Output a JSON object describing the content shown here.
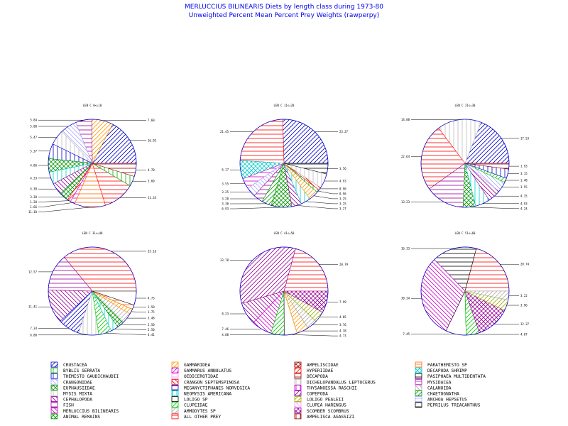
{
  "title": "MERLUCCIUS BILINEARIS Diets by length class during 1973-80",
  "subtitle": "Unweighted Percent Mean Percent Prey  Weights (rawperpy)",
  "chart_data": [
    {
      "type": "pie",
      "title": "LEN C 0<=10",
      "categories": [
        "CRUSTACEA",
        "GAMMARIDEA",
        "FISH",
        "CRANGONIDAE",
        "MYSIS MIXTA",
        "THEMISTO GAUDICHAUDII",
        "EUPHAUSIIDAE",
        "NEOMYSIS AMERICANA",
        "CEPHALOPODA",
        "ANIMAL REMAINS",
        "HYPERIIDAE",
        "MYSIDACEA",
        "PARATHEMISTO SP",
        "ALL OTHER PREY",
        "BYBLIS SERRATA",
        "DECAPODA"
      ],
      "values": [
        16.93,
        7.6,
        5.84,
        5.8,
        5.47,
        5.37,
        4.86,
        4.33,
        4.3,
        3.3,
        1.2,
        1.66,
        11.1,
        11.33,
        3.6,
        4.7
      ]
    },
    {
      "type": "pie",
      "title": "LEN C 11<=20",
      "categories": [
        "CRUSTACEA",
        "ALL OTHER PREY",
        "DECAPODA SHRIMP",
        "MYSIDACEA",
        "CRANGONIDAE",
        "FISH",
        "CHAETOGNATHA",
        "EUPHAUSIIDAE",
        "CEPHALOPODA",
        "NEOMYSIS AMERICANA",
        "GAMMARIDEA",
        "BYBLIS SERRATA",
        "CRANGON SEPTEMSPINOSA",
        "MYSIS MIXTA",
        "PASIPHAEA MULTIDENTATA"
      ],
      "values": [
        23.27,
        21.45,
        6.17,
        3.55,
        3.25,
        3.2,
        3.3,
        6.93,
        3.27,
        3.25,
        3.25,
        0.96,
        0.96,
        4.93,
        3.56
      ]
    },
    {
      "type": "pie",
      "title": "LEN C 21<=30",
      "categories": [
        "CRUSTACEA",
        "MYSIS MIXTA",
        "ALL OTHER PREY",
        "FISH",
        "EUPHAUSIIDAE",
        "NEOMYSIS AMERICANA",
        "CEPHALOPODA",
        "CRANGONIDAE",
        "CLUPEIDAE",
        "THEMISTO GAUDICHAUDII",
        "DECAPODA"
      ],
      "values": [
        17.53,
        14.88,
        22.64,
        13.23,
        4.24,
        4.93,
        4.35,
        3.55,
        1.48,
        3.15,
        1.93
      ]
    },
    {
      "type": "pie",
      "title": "LEN C 31<=40",
      "categories": [
        "ALL OTHER PREY",
        "FISH",
        "CEPHALOPODA",
        "CRUSTACEA",
        "MYSIS MIXTA",
        "CLUPEIDAE",
        "NEOMYSIS AMERICANA",
        "ANIMAL REMAINS",
        "AMMODYTES SP",
        "GAMMARIDEA",
        "PARATHEMISTO SP",
        "LOLIGO SP"
      ],
      "values": [
        33.16,
        12.57,
        11.41,
        7.34,
        6.8,
        4.41,
        2.5,
        2.5,
        3.48,
        1.75,
        1.5,
        4.73
      ]
    },
    {
      "type": "pie",
      "title": "LEN C 41<=50",
      "categories": [
        "ALL OTHER PREY",
        "COPEPODA",
        "CEPHALOPODA",
        "MERLUCCIUS BILINEARIS",
        "CLUPEIDAE",
        "LOLIGO SP",
        "GAMMARIDEA",
        "AMMODYTES SP",
        "LOLIGO PEALEII",
        "SCOMBER SCOMBRUS"
      ],
      "values": [
        20.79,
        33.7,
        8.23,
        7.46,
        4.88,
        4.73,
        4.38,
        3.76,
        4.05,
        7.99
      ]
    },
    {
      "type": "pie",
      "title": "LEN C 51<=60",
      "categories": [
        "ALL OTHER PREY",
        "PEPRILUS TRIACANTHUS",
        "MERLUCCIUS BILINEARIS",
        "LOLIGO SP",
        "CLUPEIDAE",
        "SCOMBER SCOMBRUS",
        "LOLIGO PEALEII",
        "AMMODYTES SP"
      ],
      "values": [
        20.74,
        16.33,
        30.34,
        7.45,
        4.87,
        12.37,
        3.96,
        3.22
      ]
    }
  ],
  "legend": [
    {
      "name": "CRUSTACEA",
      "color": "#0000cc",
      "pattern": "diag-r"
    },
    {
      "name": "BYBLIS SERRATA",
      "color": "#00aa00",
      "pattern": "vert"
    },
    {
      "name": "THEMISTO GAUDICHAUDII",
      "color": "#0000cc",
      "pattern": "vert"
    },
    {
      "name": "CRANGONIDAE",
      "color": "#aaaaff",
      "pattern": "diag-l"
    },
    {
      "name": "EUPHAUSIIDAE",
      "color": "#009900",
      "pattern": "cross-diag"
    },
    {
      "name": "MYSIS MIXTA",
      "color": "#bbbbbb",
      "pattern": "vert"
    },
    {
      "name": "CEPHALOPODA",
      "color": "#990099",
      "pattern": "diag-l"
    },
    {
      "name": "FISH",
      "color": "#990099",
      "pattern": "horiz"
    },
    {
      "name": "MERLUCCIUS BILINEARIS",
      "color": "#cc00cc",
      "pattern": "diag-l"
    },
    {
      "name": "ANIMAL REMAINS",
      "color": "#009900",
      "pattern": "cross-diag"
    },
    {
      "name": "GAMMARIDEA",
      "color": "#ff9900",
      "pattern": "diag-r"
    },
    {
      "name": "GAMMARUS ANNULATUS",
      "color": "#cc00cc",
      "pattern": "diag-r"
    },
    {
      "name": "OEDICEROTIDAE",
      "color": "#ff99ff",
      "pattern": "horiz"
    },
    {
      "name": "CRANGON SEPTEMSPINOSA",
      "color": "#ff0000",
      "pattern": "diag-l"
    },
    {
      "name": "MEGANYCTIPHANES NORVEGICA",
      "color": "#0000cc",
      "pattern": "horiz"
    },
    {
      "name": "NEOMYSIS AMERICANA",
      "color": "#00cccc",
      "pattern": "vert"
    },
    {
      "name": "LOLIGO SP",
      "color": "#000000",
      "pattern": "none"
    },
    {
      "name": "CLUPEIDAE",
      "color": "#00cc00",
      "pattern": "diag-r"
    },
    {
      "name": "AMMODYTES SP",
      "color": "#aaaaaa",
      "pattern": "diag-r"
    },
    {
      "name": "ALL OTHER PREY",
      "color": "#ff0000",
      "pattern": "horiz"
    },
    {
      "name": "AMPELISCIDAE",
      "color": "#990000",
      "pattern": "cross-diag"
    },
    {
      "name": "HYPERIIDAE",
      "color": "#ff0000",
      "pattern": "diag-r"
    },
    {
      "name": "DECAPODA",
      "color": "#990000",
      "pattern": "horiz"
    },
    {
      "name": "DICHELOPANDALUS LEPTOCERUS",
      "color": "#bbbbbb",
      "pattern": "vert"
    },
    {
      "name": "THYSANOESSA RASCHII",
      "color": "#cc00cc",
      "pattern": "vert"
    },
    {
      "name": "COPEPODA",
      "color": "#990099",
      "pattern": "diag-r"
    },
    {
      "name": "LOLIGO PEALEII",
      "color": "#99aa00",
      "pattern": "diag-r"
    },
    {
      "name": "CLUPEA HARENGUS",
      "color": "#ff99ff",
      "pattern": "diag-l"
    },
    {
      "name": "SCOMBER SCOMBRUS",
      "color": "#990099",
      "pattern": "cross-diag"
    },
    {
      "name": "AMPELISCA AGASSIZI",
      "color": "#990000",
      "pattern": "vert"
    },
    {
      "name": "PARATHEMISTO SP",
      "color": "#ff6600",
      "pattern": "horiz"
    },
    {
      "name": "DECAPODA SHRIMP",
      "color": "#00cccc",
      "pattern": "cross-diag"
    },
    {
      "name": "PASIPHAEA MULTIDENTATA",
      "color": "#000000",
      "pattern": "horiz"
    },
    {
      "name": "MYSIDACEA",
      "color": "#cc00cc",
      "pattern": "horiz"
    },
    {
      "name": "CALANOIDA",
      "color": "#aaaaaa",
      "pattern": "diag-l"
    },
    {
      "name": "CHAETOGNATHA",
      "color": "#009900",
      "pattern": "diag-r"
    },
    {
      "name": "ANCHOA HEPSETUS",
      "color": "#99aaff",
      "pattern": "horiz"
    },
    {
      "name": "PEPRILUS TRIACANTHUS",
      "color": "#000000",
      "pattern": "horiz"
    }
  ],
  "colors": {
    "title": "#0000ee",
    "text": "#000000",
    "background": "#ffffff"
  }
}
